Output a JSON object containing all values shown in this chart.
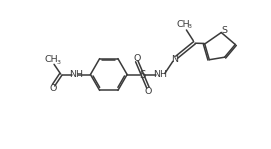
{
  "bg_color": "#ffffff",
  "line_color": "#3a3a3a",
  "line_width": 1.1,
  "font_size": 6.8,
  "dpi": 100,
  "figsize": [
    2.71,
    1.49
  ],
  "xlim": [
    0,
    10.5
  ],
  "ylim": [
    0,
    5.8
  ]
}
